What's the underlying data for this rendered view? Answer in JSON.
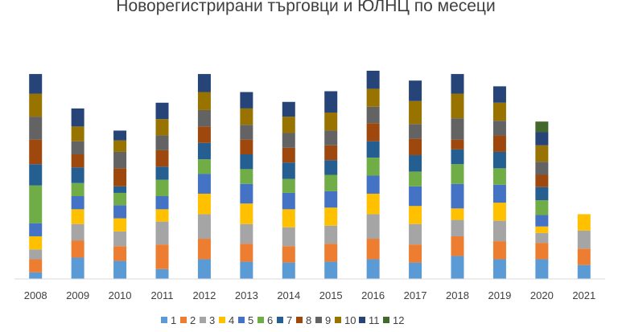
{
  "chart_data": {
    "type": "bar",
    "stacked": true,
    "title": "Новорегистрирани търговци и ЮЛНЦ по месеци",
    "xlabel": "",
    "ylabel": "",
    "legend_position": "bottom",
    "grid": false,
    "categories": [
      "2008",
      "2009",
      "2010",
      "2011",
      "2012",
      "2013",
      "2014",
      "2015",
      "2016",
      "2017",
      "2018",
      "2019",
      "2020",
      "2021"
    ],
    "series": [
      {
        "name": "1",
        "color": "#5B9BD5",
        "values": [
          8,
          26,
          22,
          12,
          24,
          21,
          20,
          21,
          24,
          20,
          28,
          24,
          24,
          17
        ]
      },
      {
        "name": "2",
        "color": "#ED7D31",
        "values": [
          16,
          21,
          18,
          30,
          25,
          22,
          20,
          22,
          25,
          22,
          24,
          22,
          20,
          20
        ]
      },
      {
        "name": "3",
        "color": "#A5A5A5",
        "values": [
          12,
          20,
          18,
          28,
          30,
          24,
          23,
          22,
          30,
          25,
          20,
          25,
          12,
          22
        ]
      },
      {
        "name": "4",
        "color": "#FFC000",
        "values": [
          16,
          18,
          16,
          15,
          25,
          25,
          22,
          22,
          25,
          22,
          14,
          22,
          8,
          20
        ]
      },
      {
        "name": "5",
        "color": "#4472C4",
        "values": [
          16,
          16,
          16,
          16,
          24,
          24,
          20,
          20,
          22,
          24,
          30,
          22,
          14,
          0
        ]
      },
      {
        "name": "6",
        "color": "#70AD47",
        "values": [
          46,
          16,
          15,
          20,
          18,
          18,
          17,
          20,
          22,
          18,
          24,
          20,
          18,
          0
        ]
      },
      {
        "name": "7",
        "color": "#255E91",
        "values": [
          26,
          19,
          8,
          16,
          20,
          18,
          20,
          18,
          20,
          20,
          18,
          20,
          16,
          0
        ]
      },
      {
        "name": "8",
        "color": "#9E480E",
        "values": [
          30,
          16,
          22,
          20,
          20,
          18,
          18,
          18,
          22,
          20,
          12,
          20,
          15,
          0
        ]
      },
      {
        "name": "9",
        "color": "#636363",
        "values": [
          28,
          16,
          20,
          18,
          20,
          18,
          18,
          18,
          20,
          18,
          26,
          18,
          16,
          0
        ]
      },
      {
        "name": "10",
        "color": "#997300",
        "values": [
          28,
          18,
          14,
          20,
          22,
          20,
          20,
          22,
          22,
          28,
          30,
          22,
          20,
          0
        ]
      },
      {
        "name": "11",
        "color": "#264478",
        "values": [
          24,
          22,
          12,
          20,
          22,
          20,
          18,
          26,
          22,
          25,
          24,
          20,
          16,
          0
        ]
      },
      {
        "name": "12",
        "color": "#43682B",
        "values": [
          0,
          0,
          0,
          0,
          0,
          0,
          0,
          0,
          0,
          0,
          0,
          0,
          13,
          0
        ]
      }
    ]
  }
}
